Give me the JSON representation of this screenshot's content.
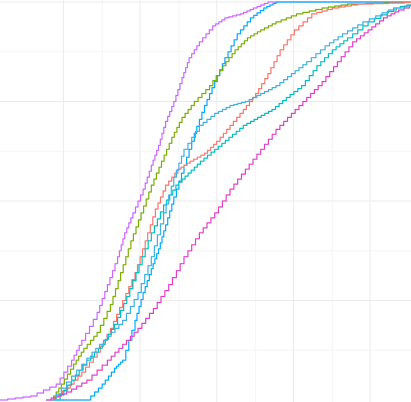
{
  "chart_data": {
    "type": "line",
    "step": true,
    "title": "",
    "xlabel": "",
    "ylabel": "",
    "xlim": [
      0,
      402
    ],
    "ylim": [
      0,
      1
    ],
    "grid": true,
    "background": "#ffffff",
    "grid_major_color": "#ebebeb",
    "grid_minor_color": "#f5f5f5",
    "x_major": [
      62,
      137,
      212,
      287,
      362
    ],
    "x_minor": [
      100,
      175,
      250,
      325
    ],
    "y_major": [
      0.25,
      0.5,
      0.75,
      1.0
    ],
    "y_minor": [
      0.125,
      0.375,
      0.625,
      0.875
    ],
    "series": [
      {
        "color": "#cc66ff",
        "points": [
          [
            0,
            0
          ],
          [
            30,
            0.01
          ],
          [
            55,
            0.04
          ],
          [
            70,
            0.1
          ],
          [
            80,
            0.15
          ],
          [
            95,
            0.22
          ],
          [
            105,
            0.29
          ],
          [
            115,
            0.36
          ],
          [
            122,
            0.42
          ],
          [
            130,
            0.47
          ],
          [
            140,
            0.53
          ],
          [
            148,
            0.59
          ],
          [
            155,
            0.64
          ],
          [
            162,
            0.7
          ],
          [
            170,
            0.75
          ],
          [
            178,
            0.81
          ],
          [
            185,
            0.86
          ],
          [
            195,
            0.9
          ],
          [
            208,
            0.94
          ],
          [
            220,
            0.96
          ],
          [
            235,
            0.97
          ],
          [
            248,
            0.985
          ],
          [
            262,
            1.0
          ],
          [
            411,
            1.0
          ]
        ]
      },
      {
        "color": "#00a9ff",
        "points": [
          [
            45,
            0
          ],
          [
            85,
            0.0
          ],
          [
            100,
            0.04
          ],
          [
            112,
            0.08
          ],
          [
            120,
            0.1
          ],
          [
            132,
            0.2
          ],
          [
            140,
            0.27
          ],
          [
            148,
            0.33
          ],
          [
            155,
            0.38
          ],
          [
            162,
            0.44
          ],
          [
            170,
            0.51
          ],
          [
            180,
            0.59
          ],
          [
            190,
            0.67
          ],
          [
            200,
            0.74
          ],
          [
            210,
            0.8
          ],
          [
            220,
            0.86
          ],
          [
            232,
            0.92
          ],
          [
            245,
            0.96
          ],
          [
            258,
            0.985
          ],
          [
            270,
            1.0
          ],
          [
            411,
            1.0
          ]
        ]
      },
      {
        "color": "#7cae00",
        "points": [
          [
            50,
            0
          ],
          [
            60,
            0.04
          ],
          [
            72,
            0.09
          ],
          [
            82,
            0.13
          ],
          [
            95,
            0.17
          ],
          [
            108,
            0.24
          ],
          [
            118,
            0.32
          ],
          [
            128,
            0.4
          ],
          [
            138,
            0.47
          ],
          [
            148,
            0.54
          ],
          [
            158,
            0.6
          ],
          [
            168,
            0.66
          ],
          [
            178,
            0.71
          ],
          [
            190,
            0.75
          ],
          [
            205,
            0.79
          ],
          [
            218,
            0.84
          ],
          [
            230,
            0.88
          ],
          [
            242,
            0.91
          ],
          [
            255,
            0.93
          ],
          [
            270,
            0.95
          ],
          [
            290,
            0.97
          ],
          [
            315,
            0.985
          ],
          [
            340,
            0.995
          ],
          [
            411,
            1.0
          ]
        ]
      },
      {
        "color": "#f8766d",
        "points": [
          [
            50,
            0
          ],
          [
            65,
            0.03
          ],
          [
            80,
            0.07
          ],
          [
            95,
            0.12
          ],
          [
            108,
            0.18
          ],
          [
            120,
            0.25
          ],
          [
            132,
            0.32
          ],
          [
            142,
            0.4
          ],
          [
            152,
            0.48
          ],
          [
            162,
            0.54
          ],
          [
            174,
            0.58
          ],
          [
            186,
            0.6
          ],
          [
            200,
            0.62
          ],
          [
            212,
            0.65
          ],
          [
            225,
            0.69
          ],
          [
            238,
            0.73
          ],
          [
            250,
            0.77
          ],
          [
            262,
            0.82
          ],
          [
            274,
            0.88
          ],
          [
            288,
            0.93
          ],
          [
            305,
            0.97
          ],
          [
            325,
            0.985
          ],
          [
            350,
            0.995
          ],
          [
            411,
            1.0
          ]
        ]
      },
      {
        "color": "#00bfc4",
        "points": [
          [
            55,
            0
          ],
          [
            70,
            0.05
          ],
          [
            85,
            0.1
          ],
          [
            100,
            0.14
          ],
          [
            112,
            0.19
          ],
          [
            124,
            0.26
          ],
          [
            136,
            0.34
          ],
          [
            148,
            0.42
          ],
          [
            160,
            0.49
          ],
          [
            172,
            0.54
          ],
          [
            184,
            0.57
          ],
          [
            196,
            0.6
          ],
          [
            210,
            0.63
          ],
          [
            224,
            0.66
          ],
          [
            238,
            0.69
          ],
          [
            252,
            0.71
          ],
          [
            266,
            0.73
          ],
          [
            280,
            0.76
          ],
          [
            295,
            0.79
          ],
          [
            310,
            0.84
          ],
          [
            325,
            0.88
          ],
          [
            340,
            0.91
          ],
          [
            360,
            0.95
          ],
          [
            385,
            0.985
          ],
          [
            411,
            1.0
          ]
        ]
      },
      {
        "color": "#e040c8",
        "points": [
          [
            45,
            0
          ],
          [
            65,
            0.02
          ],
          [
            85,
            0.05
          ],
          [
            105,
            0.1
          ],
          [
            120,
            0.14
          ],
          [
            135,
            0.18
          ],
          [
            150,
            0.23
          ],
          [
            165,
            0.29
          ],
          [
            180,
            0.36
          ],
          [
            195,
            0.42
          ],
          [
            210,
            0.47
          ],
          [
            225,
            0.53
          ],
          [
            240,
            0.58
          ],
          [
            255,
            0.63
          ],
          [
            270,
            0.68
          ],
          [
            285,
            0.72
          ],
          [
            300,
            0.76
          ],
          [
            315,
            0.8
          ],
          [
            330,
            0.85
          ],
          [
            345,
            0.9
          ],
          [
            360,
            0.93
          ],
          [
            375,
            0.96
          ],
          [
            390,
            0.98
          ],
          [
            411,
            1.0
          ]
        ]
      },
      {
        "color": "#3fb0e0",
        "points": [
          [
            50,
            0
          ],
          [
            70,
            0.06
          ],
          [
            90,
            0.12
          ],
          [
            105,
            0.16
          ],
          [
            120,
            0.2
          ],
          [
            135,
            0.27
          ],
          [
            148,
            0.36
          ],
          [
            160,
            0.47
          ],
          [
            170,
            0.56
          ],
          [
            180,
            0.63
          ],
          [
            195,
            0.69
          ],
          [
            210,
            0.72
          ],
          [
            225,
            0.74
          ],
          [
            240,
            0.75
          ],
          [
            255,
            0.77
          ],
          [
            270,
            0.79
          ],
          [
            285,
            0.82
          ],
          [
            300,
            0.85
          ],
          [
            318,
            0.89
          ],
          [
            335,
            0.92
          ],
          [
            355,
            0.95
          ],
          [
            380,
            0.98
          ],
          [
            411,
            1.0
          ]
        ]
      }
    ]
  }
}
